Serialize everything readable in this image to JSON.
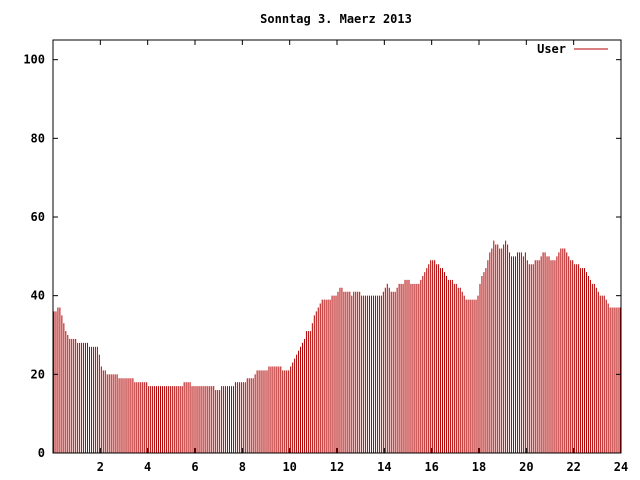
{
  "chart_data": {
    "type": "bar",
    "title": "Sonntag 3. Maerz 2013",
    "xlabel": "",
    "ylabel": "",
    "xlim": [
      0,
      24
    ],
    "ylim": [
      0,
      105
    ],
    "xticks": [
      2,
      4,
      6,
      8,
      10,
      12,
      14,
      16,
      18,
      20,
      22,
      24
    ],
    "yticks": [
      0,
      20,
      40,
      60,
      80,
      100
    ],
    "legend": "top-right",
    "grid": false,
    "series": [
      {
        "name": "User",
        "color": "#b30000",
        "sample_interval_minutes": 5,
        "values": [
          36,
          36,
          37,
          37,
          35,
          33,
          31,
          30,
          29,
          29,
          29,
          29,
          28,
          28,
          28,
          28,
          28,
          28,
          27,
          27,
          27,
          27,
          27,
          25,
          22,
          21,
          21,
          20,
          20,
          20,
          20,
          20,
          20,
          19,
          19,
          19,
          19,
          19,
          19,
          19,
          19,
          18,
          18,
          18,
          18,
          18,
          18,
          18,
          17,
          17,
          17,
          17,
          17,
          17,
          17,
          17,
          17,
          17,
          17,
          17,
          17,
          17,
          17,
          17,
          17,
          17,
          18,
          18,
          18,
          18,
          17,
          17,
          17,
          17,
          17,
          17,
          17,
          17,
          17,
          17,
          17,
          17,
          16,
          16,
          16,
          17,
          17,
          17,
          17,
          17,
          17,
          17,
          18,
          18,
          18,
          18,
          18,
          18,
          19,
          19,
          19,
          19,
          20,
          21,
          21,
          21,
          21,
          21,
          21,
          22,
          22,
          22,
          22,
          22,
          22,
          22,
          21,
          21,
          21,
          21,
          22,
          23,
          24,
          25,
          26,
          27,
          28,
          29,
          31,
          31,
          31,
          33,
          35,
          36,
          37,
          38,
          39,
          39,
          39,
          39,
          39,
          40,
          40,
          40,
          41,
          42,
          42,
          41,
          41,
          41,
          41,
          40,
          41,
          41,
          41,
          41,
          40,
          40,
          40,
          40,
          40,
          40,
          40,
          40,
          40,
          40,
          40,
          41,
          42,
          43,
          42,
          41,
          41,
          41,
          42,
          43,
          43,
          43,
          44,
          44,
          44,
          43,
          43,
          43,
          43,
          43,
          44,
          45,
          46,
          47,
          48,
          49,
          49,
          49,
          48,
          48,
          47,
          47,
          46,
          45,
          44,
          44,
          44,
          43,
          43,
          42,
          42,
          41,
          40,
          39,
          39,
          39,
          39,
          39,
          39,
          40,
          43,
          45,
          46,
          47,
          49,
          51,
          52,
          54,
          53,
          53,
          52,
          52,
          53,
          54,
          53,
          51,
          50,
          50,
          50,
          51,
          51,
          51,
          50,
          51,
          49,
          48,
          48,
          48,
          49,
          49,
          49,
          50,
          51,
          51,
          50,
          50,
          49,
          49,
          49,
          50,
          51,
          52,
          52,
          52,
          51,
          50,
          49,
          49,
          48,
          48,
          48,
          47,
          47,
          47,
          46,
          45,
          44,
          43,
          43,
          42,
          41,
          40,
          40,
          40,
          39,
          38,
          37,
          37,
          37,
          37,
          37,
          37
        ]
      }
    ]
  }
}
